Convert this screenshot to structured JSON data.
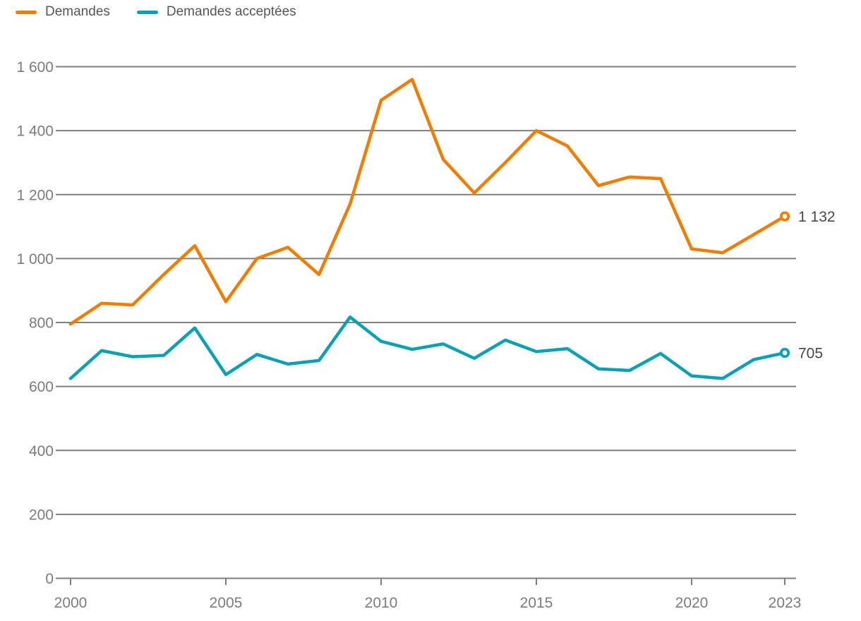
{
  "legend": {
    "items": [
      {
        "id": "demandes",
        "label": "Demandes",
        "color": "#F07D00"
      },
      {
        "id": "demandes-acceptees",
        "label": "Demandes acceptées",
        "color": "#0AA1B7"
      }
    ]
  },
  "chart_data": {
    "type": "line",
    "x": [
      2000,
      2001,
      2002,
      2003,
      2004,
      2005,
      2006,
      2007,
      2008,
      2009,
      2010,
      2011,
      2012,
      2013,
      2014,
      2015,
      2016,
      2017,
      2018,
      2019,
      2020,
      2021,
      2022,
      2023
    ],
    "series": [
      {
        "name": "Demandes",
        "color": "#F07D00",
        "values": [
          795,
          860,
          855,
          950,
          1040,
          865,
          1000,
          1035,
          950,
          1170,
          1495,
          1560,
          1310,
          1205,
          1300,
          1400,
          1352,
          1228,
          1255,
          1250,
          1030,
          1018,
          1075,
          1132
        ],
        "end_label": "1 132"
      },
      {
        "name": "Demandes acceptées",
        "color": "#0AA1B7",
        "values": [
          625,
          712,
          693,
          697,
          783,
          637,
          700,
          670,
          681,
          817,
          741,
          716,
          733,
          688,
          745,
          709,
          718,
          655,
          650,
          703,
          633,
          625,
          684,
          705
        ],
        "end_label": "705"
      }
    ],
    "title": "",
    "xlabel": "",
    "ylabel": "",
    "ylim": [
      0,
      1600
    ],
    "xlim": [
      2000,
      2023
    ],
    "grid": true,
    "legend_position": "top-left",
    "y_ticks": [
      {
        "value": 0,
        "label": "0"
      },
      {
        "value": 200,
        "label": "200"
      },
      {
        "value": 400,
        "label": "400"
      },
      {
        "value": 600,
        "label": "600"
      },
      {
        "value": 800,
        "label": "800"
      },
      {
        "value": 1000,
        "label": "1 000"
      },
      {
        "value": 1200,
        "label": "1 200"
      },
      {
        "value": 1400,
        "label": "1 400"
      },
      {
        "value": 1600,
        "label": "1 600"
      }
    ],
    "x_ticks": [
      {
        "value": 2000,
        "label": "2000"
      },
      {
        "value": 2005,
        "label": "2005"
      },
      {
        "value": 2010,
        "label": "2010"
      },
      {
        "value": 2015,
        "label": "2015"
      },
      {
        "value": 2020,
        "label": "2020"
      },
      {
        "value": 2023,
        "label": "2023"
      }
    ],
    "colors": {
      "grid": "#7F7F7F",
      "axis_label": "#7B7B7D",
      "legend_text": "#55565B",
      "end_label": "#47474A",
      "background": "#FFFFFF"
    }
  }
}
